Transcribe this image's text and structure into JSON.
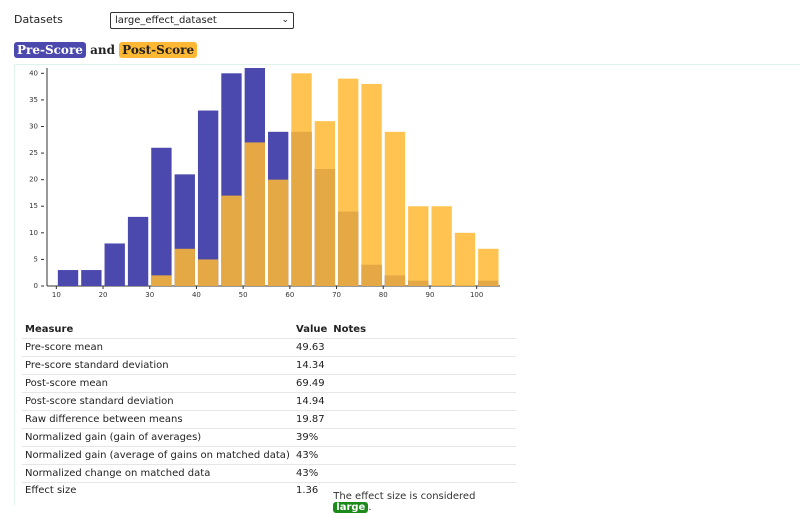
{
  "controls": {
    "label": "Datasets",
    "selected": "large_effect_dataset"
  },
  "heading": {
    "connector": "and"
  },
  "chart_data": {
    "type": "histogram",
    "bins": [
      10,
      15,
      20,
      25,
      30,
      35,
      40,
      45,
      50,
      55,
      60,
      65,
      70,
      75,
      80,
      85,
      90,
      95,
      100,
      105
    ],
    "series": [
      {
        "name": "Pre-Score",
        "color": "#4b49ad",
        "values": [
          3,
          3,
          8,
          13,
          26,
          21,
          33,
          40,
          41,
          29,
          29,
          22,
          14,
          4,
          2,
          1,
          0,
          0,
          1
        ]
      },
      {
        "name": "Post-Score",
        "color": "#ffb833",
        "values": [
          0,
          0,
          0,
          0,
          2,
          7,
          5,
          17,
          27,
          20,
          40,
          31,
          39,
          38,
          29,
          15,
          15,
          10,
          7
        ]
      }
    ],
    "xlim": [
      8,
      105
    ],
    "xticks": [
      10,
      20,
      30,
      40,
      50,
      60,
      70,
      80,
      90,
      100
    ],
    "ylim": [
      0,
      41
    ],
    "yticks": [
      0,
      5,
      10,
      15,
      20,
      25,
      30,
      35,
      40
    ]
  },
  "table": {
    "columns": [
      "Measure",
      "Value",
      "Notes"
    ],
    "rows": [
      {
        "measure": "Pre-score mean",
        "value": "49.63"
      },
      {
        "measure": "Pre-score standard deviation",
        "value": "14.34"
      },
      {
        "measure": "Post-score mean",
        "value": "69.49"
      },
      {
        "measure": "Post-score standard deviation",
        "value": "14.94"
      },
      {
        "measure": "Raw difference between means",
        "value": "19.87"
      },
      {
        "measure": "Normalized gain (gain of averages)",
        "value": "39%"
      },
      {
        "measure": "Normalized gain (average of gains on matched data)",
        "value": "43%"
      },
      {
        "measure": "Normalized change on matched data",
        "value": "43%"
      },
      {
        "measure": "Effect size",
        "value": "1.36",
        "note_prefix": "The effect size is considered",
        "badge": "large",
        "note_suffix": "."
      }
    ]
  }
}
